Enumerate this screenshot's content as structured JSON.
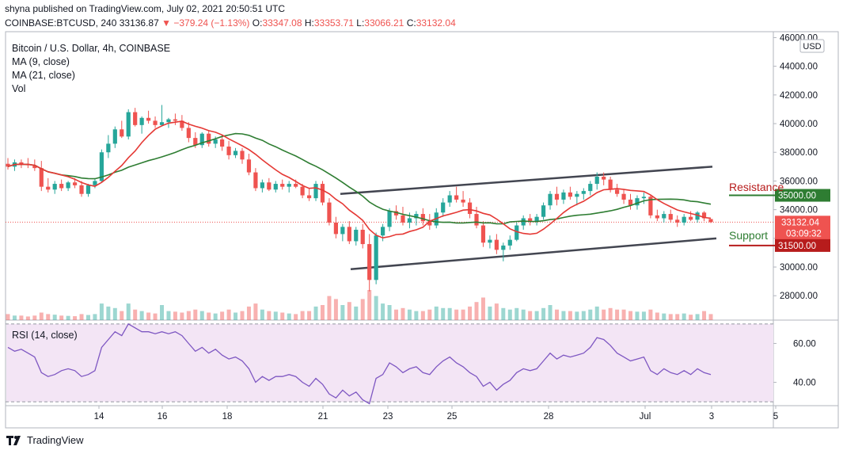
{
  "header": {
    "publisher_line": "shyna published on TradingView.com, July 02, 2021 20:50:51 UTC",
    "symbol": "COINBASE:BTCUSD, 240",
    "last": "33136.87",
    "change_arrow": "▼",
    "change": "−379.24 (−1.13%)",
    "o_label": "O:",
    "o_value": "33347.08",
    "h_label": "H:",
    "h_value": "33353.71",
    "l_label": "L:",
    "l_value": "33066.21",
    "c_label": "C:",
    "c_value": "33132.04"
  },
  "legend": {
    "title": "Bitcoin / U.S. Dollar, 4h, COINBASE",
    "ma9": "MA (9, close)",
    "ma21": "MA (21, close)",
    "vol": "Vol",
    "rsi": "RSI (14, close)"
  },
  "annotations": {
    "resistance": "Resistance",
    "support": "Support",
    "resistance_value": "35000.00",
    "support_value": "31500.00",
    "price_label": "33132.04",
    "countdown": "03:09:32",
    "currency": "USD"
  },
  "footer": {
    "brand": "TradingView"
  },
  "colors": {
    "up": "#26a69a",
    "down": "#ef5350",
    "ma9": "#e53935",
    "ma21": "#2e7d32",
    "trend": "#434651",
    "rsi": "#7e57c2",
    "rsi_band": "#f3e5f5",
    "resistance": "#2e7d32",
    "support": "#b71c1c"
  },
  "chart_data": [
    {
      "type": "candlestick",
      "title": "Bitcoin / U.S. Dollar, 4h, COINBASE",
      "x_tick_labels": [
        "14",
        "16",
        "18",
        "21",
        "23",
        "25",
        "28",
        "Jul",
        "3",
        "5"
      ],
      "y_tick_labels": [
        "46000.00",
        "44000.00",
        "42000.00",
        "40000.00",
        "38000.00",
        "36000.00",
        "34000.00",
        "32000.00",
        "30000.00",
        "28000.00"
      ],
      "ylim": [
        26300,
        46300
      ],
      "ohlc": [
        [
          37200,
          37600,
          36800,
          37000
        ],
        [
          37000,
          37500,
          36700,
          37300
        ],
        [
          37300,
          37500,
          36900,
          37200
        ],
        [
          37200,
          37600,
          36900,
          37100
        ],
        [
          37100,
          37500,
          36700,
          36900
        ],
        [
          36900,
          37400,
          35300,
          35600
        ],
        [
          35600,
          36200,
          35200,
          35400
        ],
        [
          35400,
          36000,
          35100,
          35800
        ],
        [
          35800,
          36100,
          35300,
          35500
        ],
        [
          35500,
          36000,
          35300,
          35900
        ],
        [
          35900,
          36200,
          35500,
          35700
        ],
        [
          35700,
          36000,
          34900,
          35100
        ],
        [
          35100,
          35800,
          34900,
          35700
        ],
        [
          35700,
          36200,
          35500,
          36000
        ],
        [
          36000,
          38200,
          35900,
          38000
        ],
        [
          38000,
          39200,
          37600,
          38600
        ],
        [
          38600,
          39800,
          38300,
          39600
        ],
        [
          39600,
          40200,
          39000,
          39100
        ],
        [
          39100,
          41000,
          38900,
          40800
        ],
        [
          40800,
          41100,
          39800,
          39900
        ],
        [
          39900,
          40500,
          39300,
          40400
        ],
        [
          40400,
          40900,
          40000,
          40200
        ],
        [
          40200,
          40500,
          39700,
          39900
        ],
        [
          39900,
          41300,
          39800,
          40100
        ],
        [
          40100,
          40400,
          39700,
          40300
        ],
        [
          40300,
          40700,
          39900,
          40200
        ],
        [
          40200,
          40600,
          39500,
          39700
        ],
        [
          39700,
          40100,
          38700,
          39000
        ],
        [
          39000,
          39400,
          38300,
          38500
        ],
        [
          38500,
          39400,
          38300,
          39300
        ],
        [
          39300,
          39500,
          38400,
          38600
        ],
        [
          38600,
          39100,
          38300,
          38900
        ],
        [
          38900,
          39200,
          38100,
          38400
        ],
        [
          38400,
          38800,
          37500,
          37800
        ],
        [
          37800,
          38300,
          37600,
          38100
        ],
        [
          38100,
          38300,
          37200,
          37500
        ],
        [
          37500,
          37900,
          36400,
          36600
        ],
        [
          36600,
          36900,
          35300,
          35500
        ],
        [
          35500,
          36100,
          35200,
          35900
        ],
        [
          35900,
          36200,
          35300,
          35400
        ],
        [
          35400,
          36000,
          35200,
          35800
        ],
        [
          35800,
          36100,
          35400,
          35600
        ],
        [
          35600,
          36000,
          35200,
          35800
        ],
        [
          35800,
          36100,
          35500,
          35600
        ],
        [
          35600,
          35800,
          34800,
          35000
        ],
        [
          35000,
          35500,
          34600,
          34800
        ],
        [
          34800,
          36000,
          34600,
          35800
        ],
        [
          35800,
          36000,
          34300,
          34500
        ],
        [
          34500,
          34800,
          32900,
          33100
        ],
        [
          33100,
          33500,
          32000,
          32300
        ],
        [
          32300,
          33000,
          31800,
          32800
        ],
        [
          32800,
          33200,
          31600,
          31800
        ],
        [
          31800,
          32800,
          31500,
          32600
        ],
        [
          32600,
          33000,
          31300,
          31600
        ],
        [
          31600,
          32300,
          28300,
          29100
        ],
        [
          29100,
          32400,
          28800,
          32200
        ],
        [
          32200,
          33000,
          31800,
          32800
        ],
        [
          32800,
          34100,
          32500,
          33900
        ],
        [
          33900,
          34300,
          33300,
          33600
        ],
        [
          33600,
          34200,
          32900,
          33100
        ],
        [
          33100,
          33800,
          32700,
          33400
        ],
        [
          33400,
          33900,
          32900,
          33700
        ],
        [
          33700,
          34100,
          32900,
          33200
        ],
        [
          33200,
          33700,
          32600,
          32900
        ],
        [
          32900,
          34100,
          32700,
          33800
        ],
        [
          33800,
          34800,
          33500,
          34500
        ],
        [
          34500,
          35300,
          34200,
          35000
        ],
        [
          35000,
          35600,
          34500,
          34700
        ],
        [
          34700,
          35300,
          34200,
          34500
        ],
        [
          34500,
          34800,
          33400,
          33700
        ],
        [
          33700,
          34200,
          32700,
          32900
        ],
        [
          32900,
          33200,
          31400,
          31700
        ],
        [
          31700,
          32200,
          31300,
          31900
        ],
        [
          31900,
          32300,
          30900,
          31200
        ],
        [
          31200,
          31700,
          30400,
          31500
        ],
        [
          31500,
          32200,
          31200,
          31900
        ],
        [
          31900,
          33100,
          31800,
          32900
        ],
        [
          32900,
          33600,
          32600,
          33400
        ],
        [
          33400,
          33700,
          32900,
          33200
        ],
        [
          33200,
          33700,
          32900,
          33500
        ],
        [
          33500,
          34500,
          33300,
          34300
        ],
        [
          34300,
          35300,
          34000,
          35100
        ],
        [
          35100,
          35600,
          34300,
          34700
        ],
        [
          34700,
          35400,
          34400,
          35200
        ],
        [
          35200,
          35600,
          34700,
          34900
        ],
        [
          34900,
          35300,
          34300,
          35100
        ],
        [
          35100,
          35500,
          34700,
          35300
        ],
        [
          35300,
          36000,
          35000,
          35800
        ],
        [
          35800,
          36600,
          35400,
          36300
        ],
        [
          36300,
          36600,
          35700,
          36100
        ],
        [
          36100,
          36300,
          35200,
          35400
        ],
        [
          35400,
          35800,
          34900,
          35100
        ],
        [
          35100,
          35400,
          34400,
          34700
        ],
        [
          34700,
          35100,
          34000,
          34300
        ],
        [
          34300,
          35000,
          34000,
          34800
        ],
        [
          34800,
          35200,
          34400,
          34900
        ],
        [
          34900,
          35000,
          33400,
          33600
        ],
        [
          33600,
          34000,
          33200,
          33400
        ],
        [
          33400,
          33900,
          33100,
          33700
        ],
        [
          33700,
          34000,
          33100,
          33300
        ],
        [
          33300,
          33600,
          32800,
          33100
        ],
        [
          33100,
          33700,
          32900,
          33500
        ],
        [
          33500,
          33900,
          33200,
          33300
        ],
        [
          33300,
          33900,
          33100,
          33800
        ],
        [
          33800,
          33900,
          33200,
          33400
        ],
        [
          33347,
          33354,
          33066,
          33132
        ]
      ],
      "volume_rel": [
        0.2,
        0.15,
        0.15,
        0.12,
        0.15,
        0.25,
        0.2,
        0.18,
        0.15,
        0.14,
        0.13,
        0.2,
        0.17,
        0.2,
        0.55,
        0.45,
        0.4,
        0.3,
        0.55,
        0.35,
        0.3,
        0.25,
        0.22,
        0.5,
        0.3,
        0.28,
        0.25,
        0.3,
        0.35,
        0.3,
        0.25,
        0.22,
        0.28,
        0.35,
        0.25,
        0.3,
        0.45,
        0.55,
        0.35,
        0.3,
        0.28,
        0.25,
        0.22,
        0.2,
        0.3,
        0.3,
        0.45,
        0.5,
        0.8,
        0.7,
        0.5,
        0.6,
        0.45,
        0.7,
        1.0,
        0.8,
        0.55,
        0.5,
        0.35,
        0.4,
        0.35,
        0.3,
        0.3,
        0.35,
        0.45,
        0.4,
        0.4,
        0.35,
        0.35,
        0.45,
        0.6,
        0.75,
        0.45,
        0.55,
        0.4,
        0.35,
        0.4,
        0.35,
        0.3,
        0.3,
        0.4,
        0.5,
        0.35,
        0.3,
        0.3,
        0.28,
        0.3,
        0.35,
        0.45,
        0.35,
        0.4,
        0.35,
        0.35,
        0.3,
        0.28,
        0.28,
        0.35,
        0.25,
        0.22,
        0.2,
        0.2,
        0.22,
        0.18,
        0.2,
        0.3,
        0.2
      ]
    },
    {
      "type": "line",
      "title": "RSI (14, close)",
      "y_tick_labels": [
        "60.00",
        "40.00"
      ],
      "ylim": [
        28,
        72
      ],
      "bands": [
        30,
        70
      ],
      "values": [
        58,
        56,
        57,
        55,
        53,
        45,
        43,
        44,
        46,
        47,
        46,
        43,
        44,
        46,
        58,
        62,
        66,
        64,
        70,
        68,
        66,
        66,
        65,
        66,
        65,
        66,
        64,
        60,
        56,
        58,
        55,
        57,
        54,
        52,
        53,
        51,
        47,
        40,
        43,
        41,
        43,
        43,
        44,
        43,
        40,
        38,
        42,
        39,
        34,
        32,
        36,
        33,
        35,
        31,
        29,
        42,
        44,
        50,
        48,
        45,
        47,
        48,
        45,
        44,
        48,
        51,
        53,
        50,
        48,
        45,
        43,
        38,
        40,
        36,
        39,
        41,
        45,
        47,
        46,
        47,
        51,
        55,
        52,
        54,
        53,
        54,
        55,
        58,
        63,
        62,
        59,
        55,
        53,
        51,
        52,
        53,
        46,
        44,
        47,
        45,
        44,
        46,
        44,
        47,
        45,
        44
      ]
    }
  ]
}
